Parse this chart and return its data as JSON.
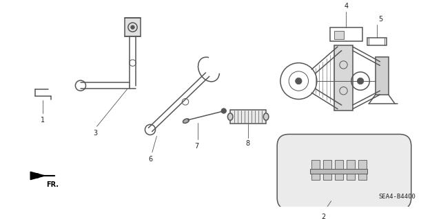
{
  "bg_color": "#ffffff",
  "line_color": "#555555",
  "label_color": "#222222",
  "diagram_code": "SEA4-B4400",
  "lw": 1.1,
  "lw_thin": 0.7
}
